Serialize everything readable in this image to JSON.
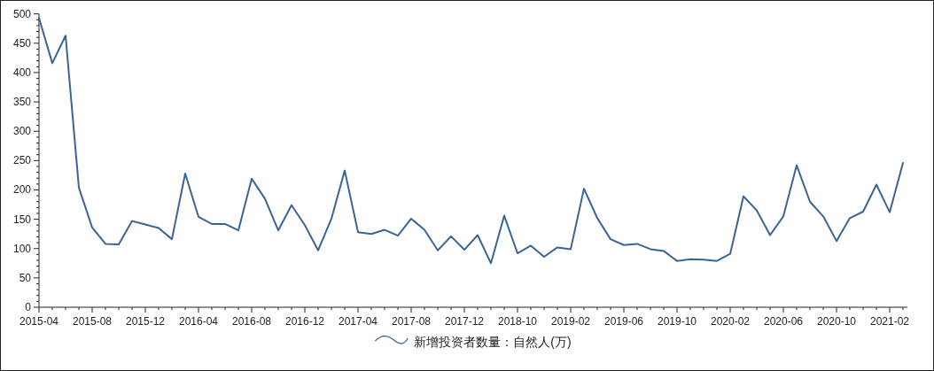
{
  "chart_data": {
    "type": "line",
    "categories": [
      "2015-04",
      null,
      null,
      null,
      "2015-08",
      null,
      null,
      null,
      "2015-12",
      null,
      null,
      null,
      "2016-04",
      null,
      null,
      null,
      "2016-08",
      null,
      null,
      null,
      "2016-12",
      null,
      null,
      null,
      "2017-04",
      null,
      null,
      null,
      "2017-08",
      null,
      null,
      null,
      "2017-12",
      null,
      null,
      null,
      "2018-10",
      null,
      null,
      null,
      "2019-02",
      null,
      null,
      null,
      "2019-06",
      null,
      null,
      null,
      "2019-10",
      null,
      null,
      null,
      "2020-02",
      null,
      null,
      null,
      "2020-06",
      null,
      null,
      null,
      "2020-10",
      null,
      null,
      null,
      "2021-02",
      null
    ],
    "series": [
      {
        "name": "新增投资者数量：自然人(万)",
        "color": "#3a6496",
        "values": [
          493,
          416,
          463,
          204,
          136,
          108,
          107,
          147,
          141,
          135,
          116,
          228,
          154,
          142,
          142,
          131,
          219,
          185,
          131,
          174,
          140,
          97,
          151,
          233,
          128,
          125,
          132,
          122,
          151,
          132,
          97,
          121,
          98,
          123,
          75,
          156,
          92,
          105,
          86,
          102,
          99,
          202,
          152,
          116,
          106,
          108,
          99,
          96,
          79,
          82,
          81,
          79,
          91,
          189,
          165,
          123,
          155,
          242,
          180,
          155,
          113,
          152,
          163,
          209,
          162,
          246
        ]
      }
    ],
    "ylim": [
      0,
      500
    ],
    "yticks": [
      0,
      50,
      100,
      150,
      200,
      250,
      300,
      350,
      400,
      450,
      500
    ],
    "legend": "bottom",
    "marker": "none",
    "line_style": "solid",
    "grid": false
  }
}
